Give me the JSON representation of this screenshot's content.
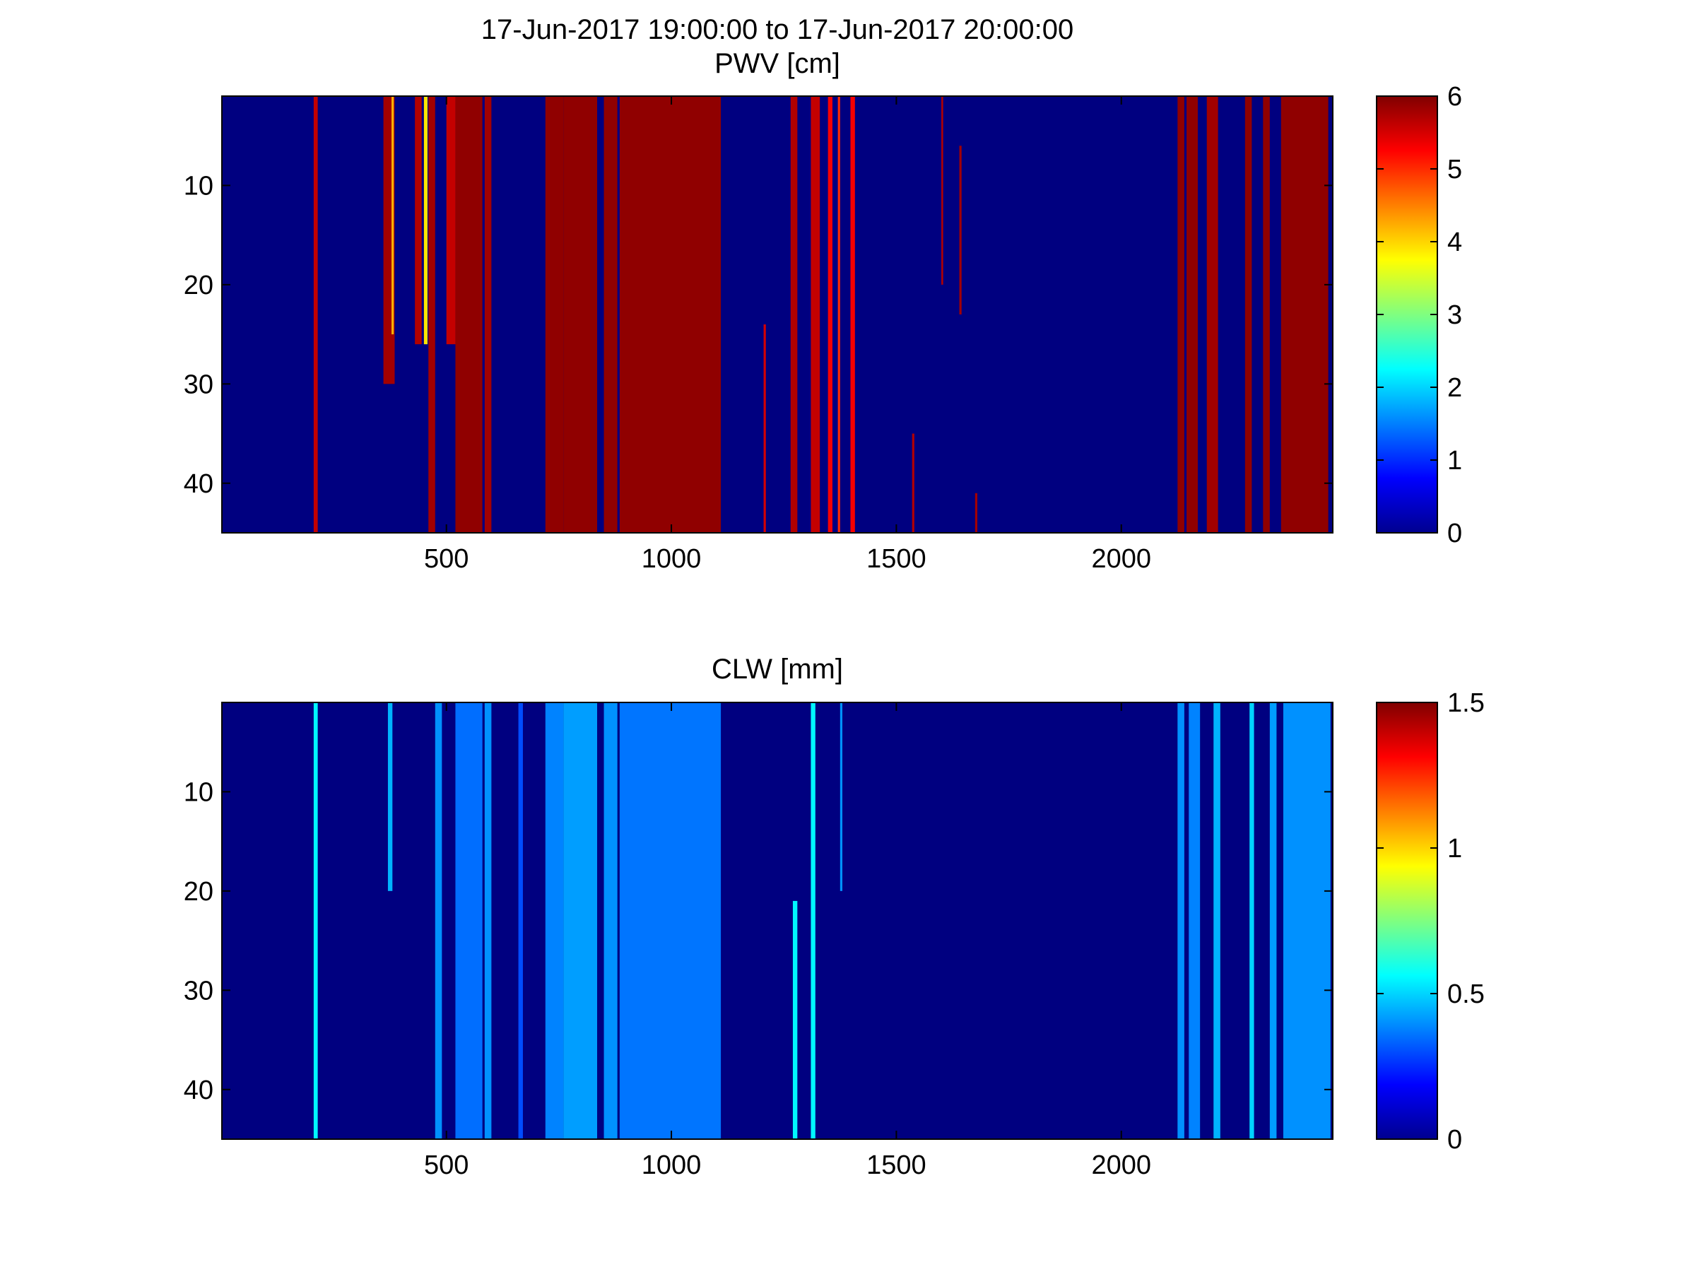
{
  "figure": {
    "title_line1": "17-Jun-2017 19:00:00 to 17-Jun-2017 20:00:00"
  },
  "colormap": "jet",
  "chart_data": [
    {
      "type": "heatmap",
      "title": "PWV [cm]",
      "xlim": [
        1,
        2470
      ],
      "ylim": [
        1,
        45
      ],
      "y_reversed": true,
      "xticks": [
        500,
        1000,
        1500,
        2000
      ],
      "yticks": [
        10,
        20,
        30,
        40
      ],
      "clim": [
        0,
        6
      ],
      "cticks": [
        "0",
        "1",
        "2",
        "3",
        "4",
        "5",
        "6"
      ],
      "cticks_values": [
        0,
        1,
        2,
        3,
        4,
        5,
        6
      ],
      "background_value": 0,
      "bands": [
        {
          "x": [
            205,
            214
          ],
          "y": [
            1,
            45
          ],
          "value": 5.6
        },
        {
          "x": [
            360,
            385
          ],
          "y": [
            1,
            30
          ],
          "value": 5.8
        },
        {
          "x": [
            378,
            383
          ],
          "y": [
            1,
            25
          ],
          "value": 4.2
        },
        {
          "x": [
            430,
            445
          ],
          "y": [
            1,
            26
          ],
          "value": 5.7
        },
        {
          "x": [
            450,
            458
          ],
          "y": [
            1,
            26
          ],
          "value": 3.9
        },
        {
          "x": [
            460,
            475
          ],
          "y": [
            1,
            45
          ],
          "value": 5.8
        },
        {
          "x": [
            500,
            520
          ],
          "y": [
            1,
            26
          ],
          "value": 5.6
        },
        {
          "x": [
            520,
            580
          ],
          "y": [
            1,
            45
          ],
          "value": 5.9
        },
        {
          "x": [
            585,
            600
          ],
          "y": [
            1,
            45
          ],
          "value": 5.8
        },
        {
          "x": [
            720,
            760
          ],
          "y": [
            1,
            45
          ],
          "value": 5.9
        },
        {
          "x": [
            760,
            835
          ],
          "y": [
            1,
            45
          ],
          "value": 5.9
        },
        {
          "x": [
            850,
            880
          ],
          "y": [
            1,
            45
          ],
          "value": 5.9
        },
        {
          "x": [
            885,
            1110
          ],
          "y": [
            1,
            45
          ],
          "value": 5.9
        },
        {
          "x": [
            1205,
            1210
          ],
          "y": [
            24,
            45
          ],
          "value": 5.5
        },
        {
          "x": [
            1265,
            1280
          ],
          "y": [
            1,
            45
          ],
          "value": 5.7
        },
        {
          "x": [
            1310,
            1330
          ],
          "y": [
            1,
            45
          ],
          "value": 5.6
        },
        {
          "x": [
            1348,
            1358
          ],
          "y": [
            1,
            45
          ],
          "value": 5.3
        },
        {
          "x": [
            1370,
            1375
          ],
          "y": [
            1,
            45
          ],
          "value": 5.0
        },
        {
          "x": [
            1398,
            1408
          ],
          "y": [
            1,
            45
          ],
          "value": 5.3
        },
        {
          "x": [
            1535,
            1540
          ],
          "y": [
            35,
            45
          ],
          "value": 5.7
        },
        {
          "x": [
            1600,
            1604
          ],
          "y": [
            1,
            20
          ],
          "value": 5.7
        },
        {
          "x": [
            1640,
            1645
          ],
          "y": [
            6,
            23
          ],
          "value": 5.8
        },
        {
          "x": [
            1675,
            1680
          ],
          "y": [
            41,
            45
          ],
          "value": 5.8
        },
        {
          "x": [
            2125,
            2140
          ],
          "y": [
            1,
            45
          ],
          "value": 5.9
        },
        {
          "x": [
            2145,
            2170
          ],
          "y": [
            1,
            45
          ],
          "value": 5.9
        },
        {
          "x": [
            2190,
            2215
          ],
          "y": [
            1,
            45
          ],
          "value": 5.8
        },
        {
          "x": [
            2275,
            2290
          ],
          "y": [
            1,
            45
          ],
          "value": 5.9
        },
        {
          "x": [
            2315,
            2330
          ],
          "y": [
            1,
            45
          ],
          "value": 5.9
        },
        {
          "x": [
            2355,
            2460
          ],
          "y": [
            1,
            45
          ],
          "value": 5.9
        }
      ]
    },
    {
      "type": "heatmap",
      "title": "CLW [mm]",
      "xlim": [
        1,
        2470
      ],
      "ylim": [
        1,
        45
      ],
      "y_reversed": true,
      "xticks": [
        500,
        1000,
        1500,
        2000
      ],
      "yticks": [
        10,
        20,
        30,
        40
      ],
      "clim": [
        0,
        1.5
      ],
      "cticks": [
        "0",
        "0.5",
        "1",
        "1.5"
      ],
      "cticks_values": [
        0,
        0.5,
        1,
        1.5
      ],
      "background_value": 0,
      "bands": [
        {
          "x": [
            205,
            214
          ],
          "y": [
            1,
            45
          ],
          "value": 0.55
        },
        {
          "x": [
            370,
            380
          ],
          "y": [
            1,
            20
          ],
          "value": 0.45
        },
        {
          "x": [
            475,
            490
          ],
          "y": [
            1,
            45
          ],
          "value": 0.4
        },
        {
          "x": [
            520,
            580
          ],
          "y": [
            1,
            45
          ],
          "value": 0.35
        },
        {
          "x": [
            585,
            600
          ],
          "y": [
            1,
            45
          ],
          "value": 0.4
        },
        {
          "x": [
            660,
            670
          ],
          "y": [
            1,
            45
          ],
          "value": 0.3
        },
        {
          "x": [
            720,
            760
          ],
          "y": [
            1,
            45
          ],
          "value": 0.38
        },
        {
          "x": [
            760,
            835
          ],
          "y": [
            1,
            45
          ],
          "value": 0.42
        },
        {
          "x": [
            850,
            880
          ],
          "y": [
            1,
            45
          ],
          "value": 0.4
        },
        {
          "x": [
            885,
            1110
          ],
          "y": [
            1,
            45
          ],
          "value": 0.36
        },
        {
          "x": [
            1270,
            1280
          ],
          "y": [
            21,
            45
          ],
          "value": 0.55
        },
        {
          "x": [
            1310,
            1320
          ],
          "y": [
            1,
            45
          ],
          "value": 0.55
        },
        {
          "x": [
            1375,
            1380
          ],
          "y": [
            1,
            20
          ],
          "value": 0.4
        },
        {
          "x": [
            2125,
            2140
          ],
          "y": [
            1,
            45
          ],
          "value": 0.4
        },
        {
          "x": [
            2150,
            2175
          ],
          "y": [
            1,
            45
          ],
          "value": 0.38
        },
        {
          "x": [
            2205,
            2220
          ],
          "y": [
            1,
            45
          ],
          "value": 0.45
        },
        {
          "x": [
            2285,
            2295
          ],
          "y": [
            1,
            45
          ],
          "value": 0.5
        },
        {
          "x": [
            2330,
            2345
          ],
          "y": [
            1,
            45
          ],
          "value": 0.42
        },
        {
          "x": [
            2360,
            2465
          ],
          "y": [
            1,
            45
          ],
          "value": 0.4
        }
      ]
    }
  ]
}
